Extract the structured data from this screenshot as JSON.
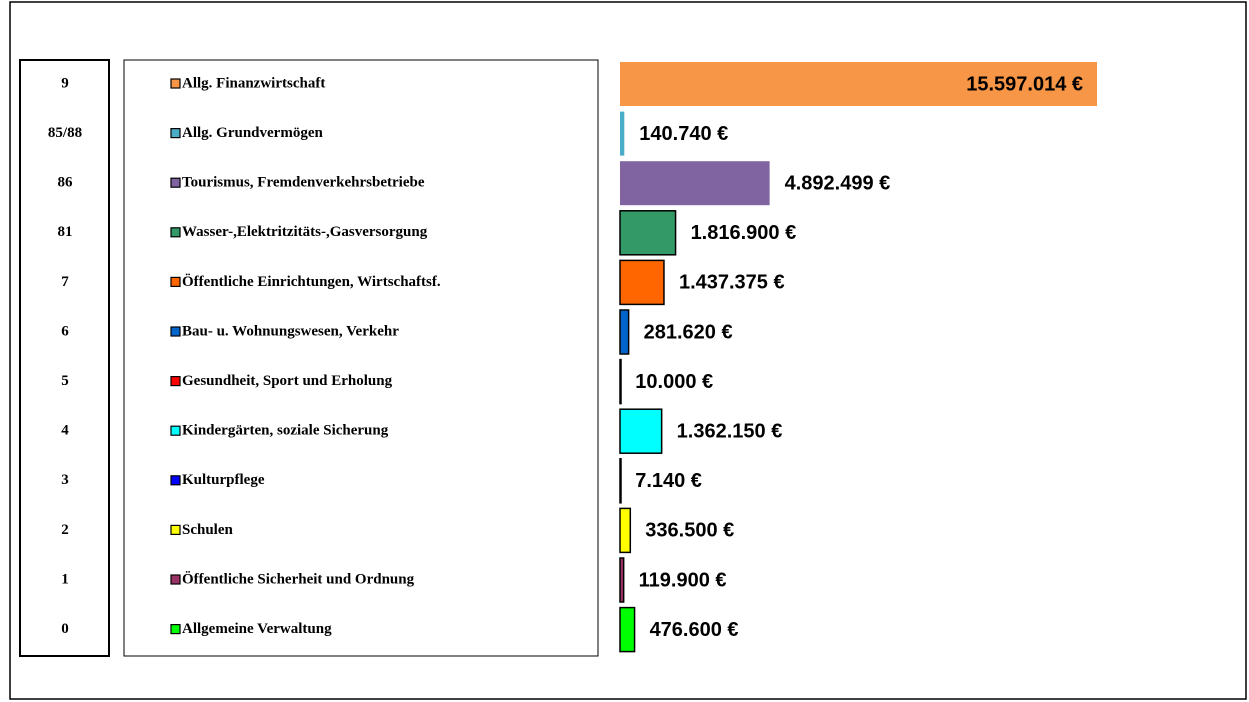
{
  "chart_data": {
    "type": "bar",
    "orientation": "horizontal",
    "codes": [
      "9",
      "85/88",
      "86",
      "81",
      "7",
      "6",
      "5",
      "4",
      "3",
      "2",
      "1",
      "0"
    ],
    "categories": [
      "Allg. Finanzwirtschaft",
      "Allg. Grundvermögen",
      "Tourismus, Fremdenverkehrsbetriebe",
      "Wasser-,Elektritzitäts-,Gasversorgung",
      "Öffentliche Einrichtungen, Wirtschaftsf.",
      "Bau- u. Wohnungswesen, Verkehr",
      "Gesundheit, Sport und Erholung",
      "Kindergärten, soziale Sicherung",
      "Kulturpflege",
      "Schulen",
      "Öffentliche Sicherheit und Ordnung",
      "Allgemeine Verwaltung"
    ],
    "values": [
      15597014,
      140740,
      4892499,
      1816900,
      1437375,
      281620,
      10000,
      1362150,
      7140,
      336500,
      119900,
      476600
    ],
    "value_labels": [
      "15.597.014 €",
      "140.740 €",
      "4.892.499 €",
      "1.816.900 €",
      "1.437.375 €",
      "281.620 €",
      "10.000 €",
      "1.362.150 €",
      "7.140 €",
      "336.500 €",
      "119.900 €",
      "476.600 €"
    ],
    "colors": [
      "#f79646",
      "#4bacc6",
      "#8064a2",
      "#339966",
      "#ff6600",
      "#0066cc",
      "#ff0000",
      "#00ffff",
      "#0000ff",
      "#ffff00",
      "#993366",
      "#00ff00"
    ]
  }
}
